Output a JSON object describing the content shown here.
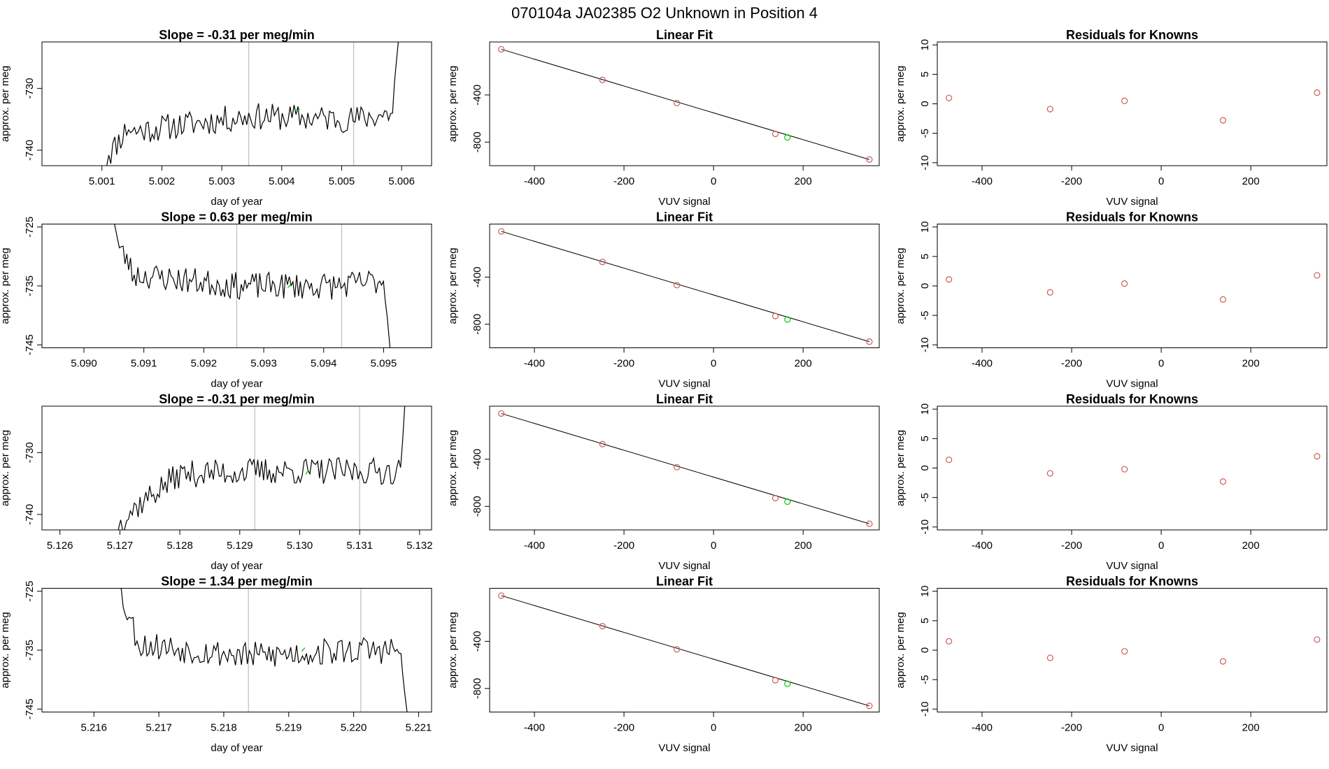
{
  "title": "070104a      JA02385    O2 Unknown in Position  4",
  "colors": {
    "known": "#cd5c5c",
    "unknown": "#00cc00",
    "line": "#000000",
    "guide": "#bdbdbd"
  },
  "chart_data": [
    {
      "type": "line",
      "panel": "drift",
      "row": 1,
      "title": "Slope =  -0.31  per meg/min",
      "xlabel": "day of year",
      "ylabel": "approx. per meg",
      "xlim": [
        5.0,
        5.0065
      ],
      "ylim": [
        -742.5,
        -722.5
      ],
      "xticks": [
        5.001,
        5.002,
        5.003,
        5.004,
        5.005,
        5.006
      ],
      "xtick_labels": [
        "5.001",
        "5.002",
        "5.003",
        "5.004",
        "5.005",
        "5.006"
      ],
      "yticks": [
        -730,
        -740
      ],
      "ytick_labels": [
        "-730",
        "-740"
      ],
      "vlines": [
        5.00345,
        5.0052
      ],
      "trace": {
        "x_start": 5.00105,
        "x_end": 5.00598,
        "base": -734.5,
        "amp": 2.2,
        "seed": 11,
        "segments": [
          [
            5.00105,
            -745
          ],
          [
            5.0011,
            -741
          ],
          [
            5.00145,
            -736
          ],
          [
            5.0015,
            -737
          ],
          [
            5.00345,
            -734.5
          ],
          [
            5.0052,
            -735
          ],
          [
            5.00585,
            -734
          ],
          [
            5.0059,
            -727
          ],
          [
            5.00598,
            -719
          ]
        ]
      },
      "highlight": {
        "x": [
          5.00425,
          5.0043
        ],
        "y": [
          -733.8,
          -733.3
        ]
      }
    },
    {
      "type": "scatter",
      "panel": "linear-fit",
      "row": 1,
      "title": "Linear Fit",
      "xlabel": "VUV signal",
      "ylabel": "approx. per meg",
      "xlim": [
        -500,
        370
      ],
      "ylim": [
        -1000,
        50
      ],
      "xticks": [
        -400,
        -200,
        0,
        200
      ],
      "xtick_labels": [
        "-400",
        "-200",
        "0",
        "200"
      ],
      "yticks": [
        -400,
        -800
      ],
      "ytick_labels": [
        "-400",
        "-800"
      ],
      "knowns": {
        "x": [
          -474,
          -248,
          -82,
          138,
          348
        ],
        "y": [
          -12,
          -272,
          -468,
          -730,
          -948
        ]
      },
      "unknown": {
        "x": [
          165
        ],
        "y": [
          -760
        ]
      },
      "fit": {
        "x": [
          -474,
          348
        ],
        "y": [
          -12,
          -948
        ]
      }
    },
    {
      "type": "scatter",
      "panel": "residuals",
      "row": 1,
      "title": "Residuals for Knowns",
      "xlabel": "VUV signal",
      "ylabel": "approx. per meg",
      "xlim": [
        -500,
        370
      ],
      "ylim": [
        -10.5,
        10.5
      ],
      "xticks": [
        -400,
        -200,
        0,
        200
      ],
      "xtick_labels": [
        "-400",
        "-200",
        "0",
        "200"
      ],
      "yticks": [
        10,
        5,
        0,
        -5,
        -10
      ],
      "ytick_labels": [
        "10",
        "5",
        "0",
        "-5",
        "-10"
      ],
      "knowns": {
        "x": [
          -474,
          -248,
          -82,
          138,
          348
        ],
        "y": [
          1.0,
          -0.9,
          0.5,
          -2.8,
          1.9
        ]
      }
    },
    {
      "type": "line",
      "panel": "drift",
      "row": 2,
      "title": "Slope =  0.63  per meg/min",
      "xlabel": "day of year",
      "ylabel": "approx. per meg",
      "xlim": [
        5.0893,
        5.0958
      ],
      "ylim": [
        -745.5,
        -724.5
      ],
      "xticks": [
        5.09,
        5.091,
        5.092,
        5.093,
        5.094,
        5.095
      ],
      "xtick_labels": [
        "5.090",
        "5.091",
        "5.092",
        "5.093",
        "5.094",
        "5.095"
      ],
      "yticks": [
        -725,
        -735,
        -745
      ],
      "ytick_labels": [
        "-725",
        "-735",
        "-745"
      ],
      "vlines": [
        5.09255,
        5.0943
      ],
      "trace": {
        "x_start": 5.0905,
        "x_end": 5.09512,
        "base": -734.5,
        "amp": 2.3,
        "seed": 23,
        "segments": [
          [
            5.0905,
            -724
          ],
          [
            5.0906,
            -729
          ],
          [
            5.09075,
            -731
          ],
          [
            5.0908,
            -733
          ],
          [
            5.09255,
            -735
          ],
          [
            5.0943,
            -735
          ],
          [
            5.095,
            -734
          ],
          [
            5.09503,
            -737
          ],
          [
            5.09512,
            -747
          ]
        ]
      },
      "highlight": {
        "x": [
          5.0934,
          5.09345
        ],
        "y": [
          -735.3,
          -734.8
        ]
      }
    },
    {
      "type": "scatter",
      "panel": "linear-fit",
      "row": 2,
      "title": "Linear Fit",
      "xlabel": "VUV signal",
      "ylabel": "approx. per meg",
      "xlim": [
        -500,
        370
      ],
      "ylim": [
        -1000,
        50
      ],
      "xticks": [
        -400,
        -200,
        0,
        200
      ],
      "xtick_labels": [
        "-400",
        "-200",
        "0",
        "200"
      ],
      "yticks": [
        -400,
        -800
      ],
      "ytick_labels": [
        "-400",
        "-800"
      ],
      "knowns": {
        "x": [
          -474,
          -248,
          -82,
          138,
          348
        ],
        "y": [
          -12,
          -272,
          -468,
          -730,
          -948
        ]
      },
      "unknown": {
        "x": [
          165
        ],
        "y": [
          -760
        ]
      },
      "fit": {
        "x": [
          -474,
          348
        ],
        "y": [
          -12,
          -948
        ]
      }
    },
    {
      "type": "scatter",
      "panel": "residuals",
      "row": 2,
      "title": "Residuals for Knowns",
      "xlabel": "VUV signal",
      "ylabel": "approx. per meg",
      "xlim": [
        -500,
        370
      ],
      "ylim": [
        -10.5,
        10.5
      ],
      "xticks": [
        -400,
        -200,
        0,
        200
      ],
      "xtick_labels": [
        "-400",
        "-200",
        "0",
        "200"
      ],
      "yticks": [
        10,
        5,
        0,
        -5,
        -10
      ],
      "ytick_labels": [
        "10",
        "5",
        "0",
        "-5",
        "-10"
      ],
      "knowns": {
        "x": [
          -474,
          -248,
          -82,
          138,
          348
        ],
        "y": [
          1.1,
          -1.1,
          0.4,
          -2.3,
          1.8
        ]
      }
    },
    {
      "type": "line",
      "panel": "drift",
      "row": 3,
      "title": "Slope =  -0.31  per meg/min",
      "xlabel": "day of year",
      "ylabel": "approx. per meg",
      "xlim": [
        5.1257,
        5.1322
      ],
      "ylim": [
        -742.5,
        -722.5
      ],
      "xticks": [
        5.126,
        5.127,
        5.128,
        5.129,
        5.13,
        5.131,
        5.132
      ],
      "xtick_labels": [
        "5.126",
        "5.127",
        "5.128",
        "5.129",
        "5.130",
        "5.131",
        "5.132"
      ],
      "yticks": [
        -730,
        -740
      ],
      "ytick_labels": [
        "-730",
        "-740"
      ],
      "vlines": [
        5.12925,
        5.131
      ],
      "trace": {
        "x_start": 5.12695,
        "x_end": 5.13178,
        "base": -733,
        "amp": 2.2,
        "seed": 37,
        "segments": [
          [
            5.12695,
            -744
          ],
          [
            5.127,
            -741
          ],
          [
            5.1275,
            -737
          ],
          [
            5.128,
            -733.5
          ],
          [
            5.12925,
            -733
          ],
          [
            5.131,
            -733
          ],
          [
            5.1317,
            -733
          ],
          [
            5.13172,
            -727
          ],
          [
            5.13178,
            -719
          ]
        ]
      },
      "highlight": {
        "x": [
          5.1301,
          5.13015
        ],
        "y": [
          -733.5,
          -732.8
        ]
      }
    },
    {
      "type": "scatter",
      "panel": "linear-fit",
      "row": 3,
      "title": "Linear Fit",
      "xlabel": "VUV signal",
      "ylabel": "approx. per meg",
      "xlim": [
        -500,
        370
      ],
      "ylim": [
        -1000,
        50
      ],
      "xticks": [
        -400,
        -200,
        0,
        200
      ],
      "xtick_labels": [
        "-400",
        "-200",
        "0",
        "200"
      ],
      "yticks": [
        -400,
        -800
      ],
      "ytick_labels": [
        "-400",
        "-800"
      ],
      "knowns": {
        "x": [
          -474,
          -248,
          -82,
          138,
          348
        ],
        "y": [
          -12,
          -272,
          -468,
          -730,
          -948
        ]
      },
      "unknown": {
        "x": [
          165
        ],
        "y": [
          -760
        ]
      },
      "fit": {
        "x": [
          -474,
          348
        ],
        "y": [
          -12,
          -948
        ]
      }
    },
    {
      "type": "scatter",
      "panel": "residuals",
      "row": 3,
      "title": "Residuals for Knowns",
      "xlabel": "VUV signal",
      "ylabel": "approx. per meg",
      "xlim": [
        -500,
        370
      ],
      "ylim": [
        -10.5,
        10.5
      ],
      "xticks": [
        -400,
        -200,
        0,
        200
      ],
      "xtick_labels": [
        "-400",
        "-200",
        "0",
        "200"
      ],
      "yticks": [
        10,
        5,
        0,
        -5,
        -10
      ],
      "ytick_labels": [
        "10",
        "5",
        "0",
        "-5",
        "-10"
      ],
      "knowns": {
        "x": [
          -474,
          -248,
          -82,
          138,
          348
        ],
        "y": [
          1.4,
          -0.9,
          -0.2,
          -2.3,
          2.0
        ]
      }
    },
    {
      "type": "line",
      "panel": "drift",
      "row": 4,
      "title": "Slope =  1.34  per meg/min",
      "xlabel": "day of year",
      "ylabel": "approx. per meg",
      "xlim": [
        5.2152,
        5.2212
      ],
      "ylim": [
        -745.5,
        -724.5
      ],
      "xticks": [
        5.216,
        5.217,
        5.218,
        5.219,
        5.22,
        5.221
      ],
      "xtick_labels": [
        "5.216",
        "5.217",
        "5.218",
        "5.219",
        "5.220",
        "5.221"
      ],
      "yticks": [
        -725,
        -735,
        -745
      ],
      "ytick_labels": [
        "-725",
        "-735",
        "-745"
      ],
      "vlines": [
        5.21838,
        5.22011
      ],
      "trace": {
        "x_start": 5.2163,
        "x_end": 5.22085,
        "base": -735.5,
        "amp": 2.4,
        "seed": 53,
        "segments": [
          [
            5.2163,
            -723
          ],
          [
            5.2164,
            -725
          ],
          [
            5.2165,
            -728
          ],
          [
            5.2167,
            -734
          ],
          [
            5.21838,
            -736
          ],
          [
            5.22011,
            -735
          ],
          [
            5.2207,
            -735
          ],
          [
            5.22075,
            -739
          ],
          [
            5.22085,
            -748
          ]
        ]
      },
      "highlight": {
        "x": [
          5.2192,
          5.21925
        ],
        "y": [
          -735.2,
          -734.6
        ]
      }
    },
    {
      "type": "scatter",
      "panel": "linear-fit",
      "row": 4,
      "title": "Linear Fit",
      "xlabel": "VUV signal",
      "ylabel": "approx. per meg",
      "xlim": [
        -500,
        370
      ],
      "ylim": [
        -1000,
        50
      ],
      "xticks": [
        -400,
        -200,
        0,
        200
      ],
      "xtick_labels": [
        "-400",
        "-200",
        "0",
        "200"
      ],
      "yticks": [
        -400,
        -800
      ],
      "ytick_labels": [
        "-400",
        "-800"
      ],
      "knowns": {
        "x": [
          -474,
          -248,
          -82,
          138,
          348
        ],
        "y": [
          -12,
          -272,
          -468,
          -730,
          -948
        ]
      },
      "unknown": {
        "x": [
          165
        ],
        "y": [
          -760
        ]
      },
      "fit": {
        "x": [
          -474,
          348
        ],
        "y": [
          -12,
          -948
        ]
      }
    },
    {
      "type": "scatter",
      "panel": "residuals",
      "row": 4,
      "title": "Residuals for Knowns",
      "xlabel": "VUV signal",
      "ylabel": "approx. per meg",
      "xlim": [
        -500,
        370
      ],
      "ylim": [
        -10.5,
        10.5
      ],
      "xticks": [
        -400,
        -200,
        0,
        200
      ],
      "xtick_labels": [
        "-400",
        "-200",
        "0",
        "200"
      ],
      "yticks": [
        10,
        5,
        0,
        -5,
        -10
      ],
      "ytick_labels": [
        "10",
        "5",
        "0",
        "-5",
        "-10"
      ],
      "knowns": {
        "x": [
          -474,
          -248,
          -82,
          138,
          348
        ],
        "y": [
          1.5,
          -1.3,
          -0.2,
          -1.9,
          1.8
        ]
      }
    }
  ]
}
